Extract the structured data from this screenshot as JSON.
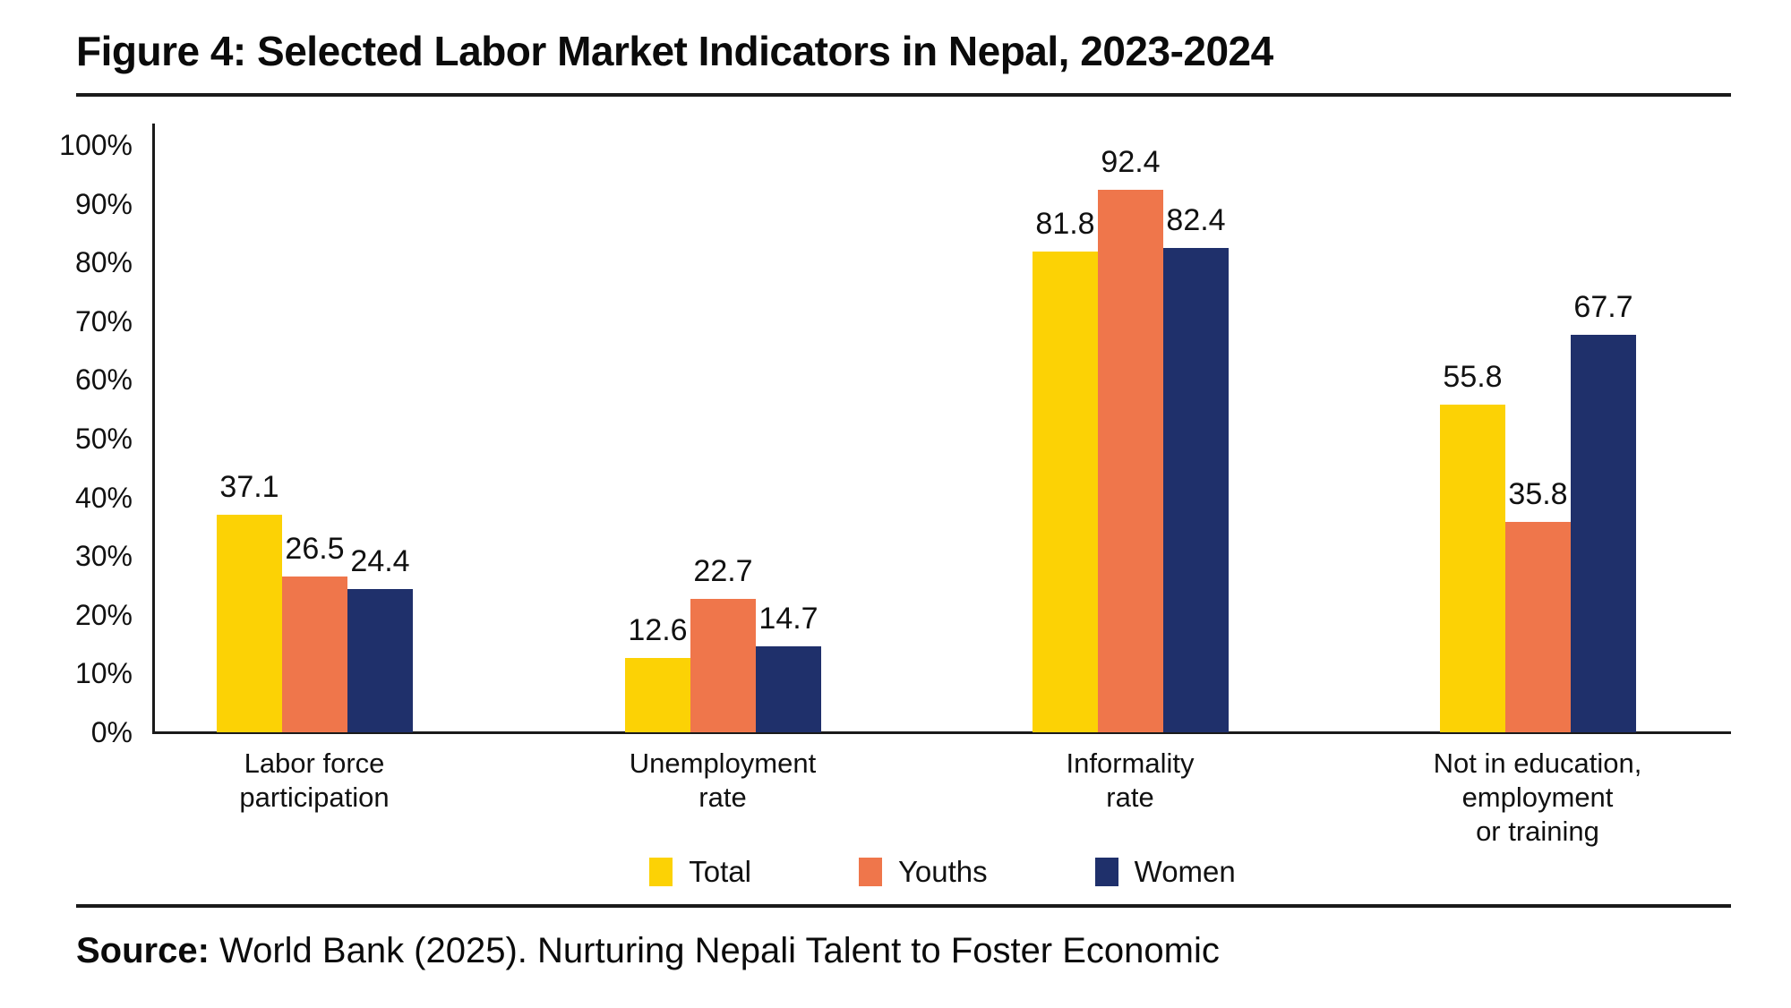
{
  "figure": {
    "title": "Figure 4: Selected Labor Market Indicators in Nepal, 2023-2024",
    "source_prefix": "Source:",
    "source_text": " World Bank (2025). Nurturing Nepali Talent to Foster Economic"
  },
  "colors": {
    "total": "#FCD205",
    "youths": "#EF764B",
    "women": "#1F306B",
    "axis": "#1a1a1a"
  },
  "chart_data": {
    "type": "bar",
    "title": "Figure 4: Selected Labor Market Indicators in Nepal, 2023-2024",
    "categories": [
      "Labor force participation",
      "Unemployment rate",
      "Informality rate",
      "Not in education, employment or training"
    ],
    "category_display": [
      "Labor force\nparticipation",
      "Unemployment\nrate",
      "Informality\nrate",
      "Not in education,\nemployment\nor training"
    ],
    "series": [
      {
        "name": "Total",
        "color": "#FCD205",
        "values": [
          37.1,
          12.6,
          81.8,
          55.8
        ]
      },
      {
        "name": "Youths",
        "color": "#EF764B",
        "values": [
          26.5,
          22.7,
          92.4,
          35.8
        ]
      },
      {
        "name": "Women",
        "color": "#1F306B",
        "values": [
          24.4,
          14.7,
          82.4,
          67.7
        ]
      }
    ],
    "xlabel": "",
    "ylabel": "",
    "ylim": [
      0,
      100
    ],
    "yticks": [
      {
        "label": "0%",
        "value": 0
      },
      {
        "label": "10%",
        "value": 10
      },
      {
        "label": "20%",
        "value": 20
      },
      {
        "label": "30%",
        "value": 30
      },
      {
        "label": "40%",
        "value": 40
      },
      {
        "label": "50%",
        "value": 50
      },
      {
        "label": "60%",
        "value": 60
      },
      {
        "label": "70%",
        "value": 70
      },
      {
        "label": "80%",
        "value": 80
      },
      {
        "label": "90%",
        "value": 90
      },
      {
        "label": "100%",
        "value": 100
      }
    ],
    "grid": false,
    "legend_position": "bottom",
    "data_labels": true
  }
}
